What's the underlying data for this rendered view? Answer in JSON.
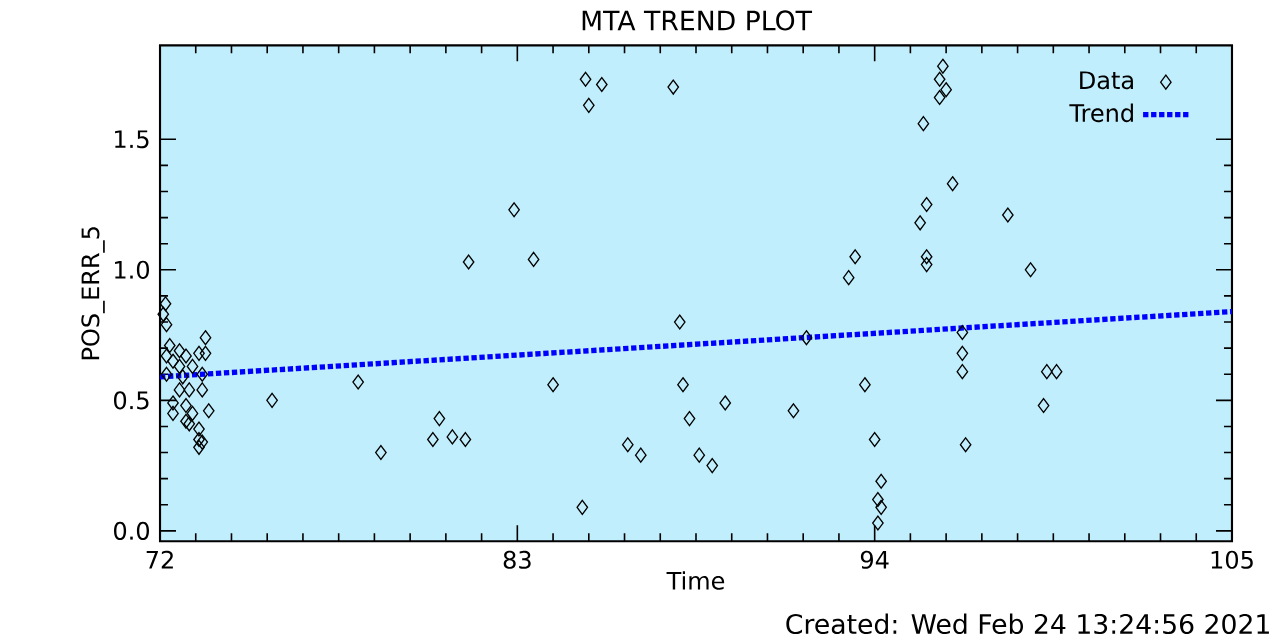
{
  "chart_data": {
    "type": "scatter",
    "title": "MTA TREND PLOT",
    "xlabel": "Time",
    "ylabel": "POS_ERR_5",
    "annotations": [
      "Created: Wed Feb 24 13:24:56 2021"
    ],
    "xlim": [
      72,
      105
    ],
    "xticks": [
      72,
      83,
      94,
      105
    ],
    "ylim": [
      -0.04,
      1.86
    ],
    "yticks": [
      {
        "value": 0,
        "label": "0.0"
      },
      {
        "value": 0.5,
        "label": "0.5"
      },
      {
        "value": 1,
        "label": "1.0"
      },
      {
        "value": 1.5,
        "label": "1.5"
      }
    ],
    "legend": "top right",
    "grid": false,
    "series": [
      {
        "name": "Data",
        "marker": "diamond",
        "color": "#000000",
        "x": [
          72.17,
          72.2,
          72.3,
          72.6,
          72.4,
          72.8,
          73.0,
          73.2,
          73.4,
          72.2,
          72.7,
          73.3,
          72.6,
          72.9,
          73.3,
          72.4,
          72.8,
          73.5,
          72.4,
          73.0,
          72.8,
          72.9,
          73.2,
          73.2,
          73.3,
          73.2,
          72.1,
          73.4,
          72.2,
          72.6,
          75.45,
          78.1,
          78.8,
          80.6,
          80.4,
          81.0,
          81.4,
          81.5,
          82.9,
          83.5,
          85.1,
          85.6,
          85.2,
          87.8,
          84.1,
          85.0,
          86.4,
          86.8,
          88.0,
          88.1,
          88.3,
          88.6,
          89.0,
          89.4,
          91.5,
          91.9,
          93.2,
          93.4,
          93.7,
          94.0,
          94.2,
          94.1,
          94.2,
          94.1,
          96.1,
          96.0,
          96.2,
          96.0,
          95.5,
          96.4,
          95.6,
          95.4,
          98.1,
          95.6,
          95.6,
          98.8,
          96.7,
          96.7,
          96.7,
          99.3,
          99.6,
          99.2,
          96.8
        ],
        "values": [
          0.87,
          0.79,
          0.71,
          0.69,
          0.65,
          0.67,
          0.63,
          0.68,
          0.68,
          0.6,
          0.59,
          0.6,
          0.54,
          0.54,
          0.54,
          0.49,
          0.48,
          0.46,
          0.45,
          0.45,
          0.42,
          0.41,
          0.39,
          0.35,
          0.34,
          0.32,
          0.83,
          0.74,
          0.67,
          0.63,
          0.5,
          0.57,
          0.3,
          0.43,
          0.35,
          0.36,
          0.35,
          1.03,
          1.23,
          1.04,
          1.73,
          1.71,
          1.63,
          1.7,
          0.56,
          0.09,
          0.33,
          0.29,
          0.8,
          0.56,
          0.43,
          0.29,
          0.25,
          0.49,
          0.46,
          0.74,
          0.97,
          1.05,
          0.56,
          0.35,
          0.19,
          0.12,
          0.09,
          0.03,
          1.78,
          1.73,
          1.69,
          1.66,
          1.56,
          1.33,
          1.25,
          1.18,
          1.21,
          1.05,
          1.02,
          1.0,
          0.76,
          0.68,
          0.61,
          0.61,
          0.61,
          0.48,
          0.33
        ]
      },
      {
        "name": "Trend",
        "type": "line",
        "line_style": "dotted",
        "color": "#0000ff",
        "x": [
          72,
          105
        ],
        "values": [
          0.59,
          0.84
        ]
      }
    ]
  }
}
